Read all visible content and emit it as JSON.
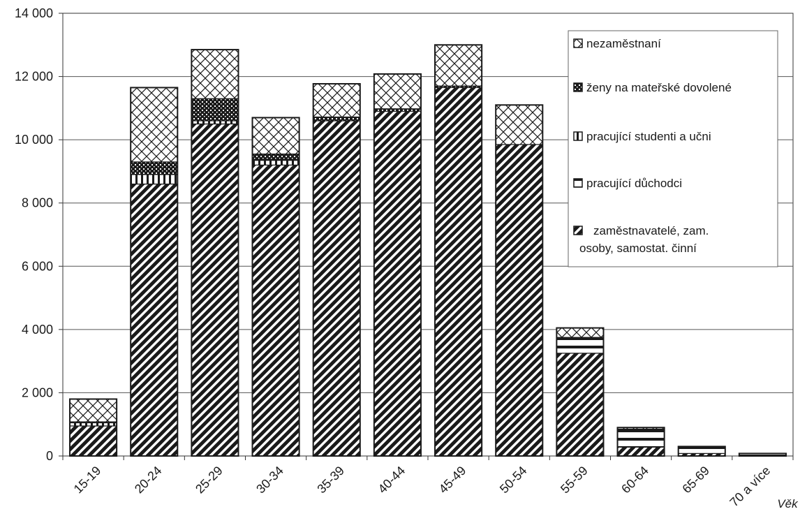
{
  "chart_data": {
    "type": "bar",
    "stacked": true,
    "categories": [
      "15-19",
      "20-24",
      "25-29",
      "30-34",
      "35-39",
      "40-44",
      "45-49",
      "50-54",
      "55-59",
      "60-64",
      "65-69",
      "70 a více"
    ],
    "series": [
      {
        "name": "zaměstnavatelé, zam. osoby, samostat. činní",
        "pattern": "diagonal-hatch",
        "values": [
          950,
          8600,
          10500,
          9200,
          10600,
          10900,
          11650,
          9850,
          3250,
          280,
          80,
          20
        ]
      },
      {
        "name": "pracující důchodci",
        "pattern": "horizontal-stripes",
        "values": [
          0,
          0,
          0,
          0,
          0,
          0,
          0,
          0,
          500,
          570,
          200,
          60
        ]
      },
      {
        "name": "pracující studenti a učni",
        "pattern": "vertical-stripes",
        "values": [
          100,
          300,
          100,
          150,
          0,
          0,
          0,
          0,
          0,
          0,
          0,
          0
        ]
      },
      {
        "name": "ženy na mateřské dovolené",
        "pattern": "dotted",
        "values": [
          30,
          400,
          700,
          200,
          120,
          80,
          50,
          0,
          0,
          0,
          0,
          0
        ]
      },
      {
        "name": "nezaměstnaní",
        "pattern": "crosshatch",
        "values": [
          720,
          2350,
          1550,
          1150,
          1050,
          1100,
          1300,
          1250,
          300,
          50,
          20,
          0
        ]
      }
    ],
    "legend_order": [
      "nezaměstnaní",
      "ženy na mateřské dovolené",
      "pracující studenti a učni",
      "pracující důchodci",
      "zaměstnavatelé, zam. osoby, samostat. činní"
    ],
    "legend_lines": [
      [
        "nezaměstnaní"
      ],
      [
        "ženy na mateřské dovolené"
      ],
      [
        "pracující studenti a učni"
      ],
      [
        "pracující důchodci"
      ],
      [
        "zaměstnavatelé, zam.",
        "osoby, samostat. činní"
      ]
    ],
    "y_ticks": [
      "0",
      "2 000",
      "4 000",
      "6 000",
      "8 000",
      "10 000",
      "12 000",
      "14 000"
    ],
    "ylim": [
      0,
      14000
    ],
    "xlabel": "Věk",
    "ylabel": "",
    "title": "",
    "grid": true,
    "legend_position": "top-right"
  }
}
